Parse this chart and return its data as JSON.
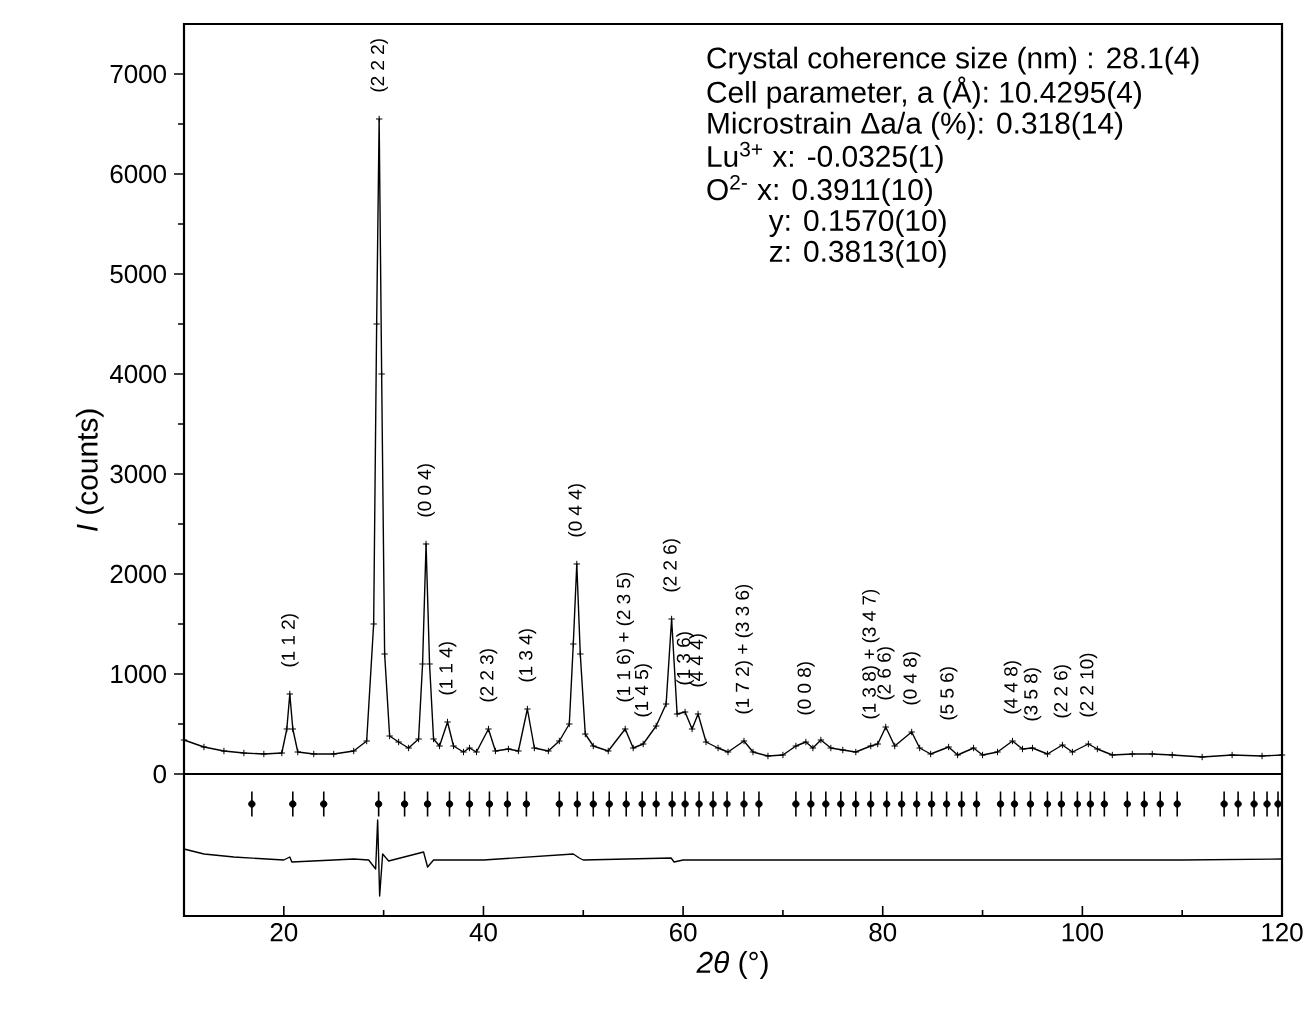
{
  "chart_data": {
    "type": "line",
    "xlabel": "*2θ* (°)",
    "ylabel": "*I* (counts)",
    "xlim": [
      10,
      120
    ],
    "xticks": [
      20,
      40,
      60,
      80,
      100,
      120
    ],
    "ylim": [
      -1420,
      7500
    ],
    "yticks": [
      0,
      1000,
      2000,
      3000,
      4000,
      5000,
      6000,
      7000
    ],
    "grid": false,
    "ref_lines": [
      {
        "axis": "y",
        "value": 0,
        "color": "#000000"
      }
    ],
    "series": [
      {
        "marker": "cross",
        "color": "#000000",
        "x": [
          10,
          12,
          14,
          16,
          18,
          19.8,
          20.3,
          20.6,
          20.9,
          21.4,
          23,
          25,
          27,
          28.3,
          29.0,
          29.3,
          29.55,
          29.8,
          30.1,
          30.6,
          31.5,
          32.5,
          33.5,
          33.9,
          34.25,
          34.6,
          35.0,
          35.6,
          36.4,
          37.0,
          38.0,
          38.6,
          39.3,
          40.5,
          41.2,
          42.5,
          43.5,
          44.4,
          45.1,
          46.5,
          47.6,
          48.6,
          49.0,
          49.35,
          49.7,
          50.2,
          51.0,
          52.5,
          54.2,
          55.0,
          56.0,
          57.3,
          58.3,
          58.85,
          59.4,
          60.2,
          60.9,
          61.5,
          62.3,
          63.5,
          64.5,
          66.1,
          67.0,
          68.5,
          70.0,
          71.3,
          72.3,
          73.0,
          73.8,
          74.8,
          76,
          77.3,
          78.8,
          79.5,
          80.3,
          81.2,
          82.9,
          83.7,
          84.8,
          86.6,
          87.5,
          89.1,
          90,
          91.5,
          93.0,
          94.0,
          95.0,
          96.5,
          98.0,
          99.0,
          100.6,
          101.5,
          103,
          105,
          107,
          109,
          112,
          115,
          118,
          120
        ],
        "values": [
          340,
          270,
          230,
          210,
          200,
          210,
          450,
          800,
          450,
          220,
          200,
          200,
          230,
          330,
          1500,
          4500,
          6550,
          4000,
          1200,
          380,
          320,
          260,
          350,
          1100,
          2300,
          1100,
          350,
          280,
          520,
          280,
          220,
          260,
          220,
          450,
          230,
          250,
          230,
          650,
          260,
          230,
          330,
          500,
          1300,
          2100,
          1200,
          400,
          280,
          230,
          450,
          260,
          300,
          480,
          700,
          1550,
          600,
          620,
          450,
          600,
          320,
          260,
          220,
          330,
          220,
          180,
          190,
          280,
          320,
          260,
          340,
          260,
          240,
          220,
          280,
          300,
          470,
          280,
          420,
          260,
          200,
          270,
          190,
          260,
          190,
          220,
          330,
          250,
          260,
          200,
          290,
          220,
          300,
          250,
          190,
          200,
          200,
          190,
          170,
          190,
          180,
          190
        ]
      },
      {
        "type": "scatter",
        "marker": "none",
        "color": "#000000",
        "x": [
          16.8,
          20.9,
          24.0,
          29.5,
          32.1,
          34.4,
          36.6,
          38.6,
          40.6,
          42.4,
          44.3,
          47.6,
          49.4,
          51.0,
          52.6,
          54.3,
          55.9,
          57.3,
          58.9,
          60.2,
          61.6,
          63.0,
          64.4,
          66.1,
          67.6,
          71.3,
          72.8,
          74.3,
          75.8,
          77.3,
          78.8,
          80.4,
          81.9,
          83.4,
          84.9,
          86.4,
          87.9,
          89.4,
          91.8,
          93.2,
          94.8,
          96.5,
          97.9,
          99.5,
          100.8,
          102.2,
          104.5,
          106.2,
          107.8,
          109.5,
          114.2,
          115.6,
          117.2,
          118.5,
          119.6
        ],
        "values": [
          -300,
          -300,
          -300,
          -300,
          -300,
          -300,
          -300,
          -300,
          -300,
          -300,
          -300,
          -300,
          -300,
          -300,
          -300,
          -300,
          -300,
          -300,
          -300,
          -300,
          -300,
          -300,
          -300,
          -300,
          -300,
          -300,
          -300,
          -300,
          -300,
          -300,
          -300,
          -300,
          -300,
          -300,
          -300,
          -300,
          -300,
          -300,
          -300,
          -300,
          -300,
          -300,
          -300,
          -300,
          -300,
          -300,
          -300,
          -300,
          -300,
          -300,
          -300,
          -300,
          -300,
          -300,
          -300
        ],
        "errors": [
          125,
          125,
          125,
          125,
          125,
          125,
          125,
          125,
          125,
          125,
          125,
          125,
          125,
          125,
          125,
          125,
          125,
          125,
          125,
          125,
          125,
          125,
          125,
          125,
          125,
          125,
          125,
          125,
          125,
          125,
          125,
          125,
          125,
          125,
          125,
          125,
          125,
          125,
          125,
          125,
          125,
          125,
          125,
          125,
          125,
          125,
          125,
          125,
          125,
          125,
          125,
          125,
          125,
          125,
          125
        ]
      },
      {
        "marker": "none",
        "color": "#000000",
        "x": [
          10,
          12,
          15,
          20,
          20.6,
          20.8,
          25,
          27,
          28.5,
          29.2,
          29.4,
          29.6,
          29.9,
          30.5,
          34.0,
          34.4,
          35,
          40,
          49,
          49.6,
          50,
          58.8,
          59.1,
          60,
          70,
          80,
          90,
          100,
          110,
          120
        ],
        "values": [
          -750,
          -800,
          -830,
          -860,
          -830,
          -880,
          -860,
          -850,
          -860,
          -950,
          -460,
          -1220,
          -800,
          -870,
          -780,
          -930,
          -860,
          -860,
          -800,
          -840,
          -860,
          -840,
          -880,
          -860,
          -860,
          -860,
          -860,
          -860,
          -860,
          -850
        ]
      }
    ],
    "annotations": [
      "Crystal coherence size (nm) : 28.1(4)",
      "Cell parameter, a (Å): 10.4295(4)",
      "Microstrain Δa/a (%): 0.318(14)",
      "Lu$^{3+}$ x: -0.0325(1)",
      "O$^{2-}$   x: 0.3911(10)",
      "y: 0.1570(10)",
      "z: 0.3813(10)",
      {
        "text": "(1 1 2)",
        "x": 20.6,
        "y": 800
      },
      {
        "text": "(2 2 2)",
        "x": 29.55,
        "y": 6550
      },
      {
        "text": "(0 0 4)",
        "x": 34.25,
        "y": 2300
      },
      {
        "text": "(1 1 4)",
        "x": 36.4,
        "y": 520
      },
      {
        "text": "(2 2 3)",
        "x": 40.5,
        "y": 450
      },
      {
        "text": "(1 3 4)",
        "x": 44.4,
        "y": 650
      },
      {
        "text": "(0 4 4)",
        "x": 49.35,
        "y": 2100
      },
      {
        "text": "(1 1 6) + (2 3 5)",
        "x": 54.2,
        "y": 450
      },
      {
        "text": "(1 4 5)",
        "x": 56.0,
        "y": 300
      },
      {
        "text": "(2 2 6)",
        "x": 58.85,
        "y": 1550
      },
      {
        "text": "(1 3 6)",
        "x": 60.2,
        "y": 620
      },
      {
        "text": "(4 4 4)",
        "x": 61.5,
        "y": 600
      },
      {
        "text": "(1 7 2) + (3 3 6)",
        "x": 66.1,
        "y": 330
      },
      {
        "text": "(0 0 8)",
        "x": 72.3,
        "y": 320
      },
      {
        "text": "(1 3 8) + (3 4 7)",
        "x": 78.8,
        "y": 280
      },
      {
        "text": "(2 6 6)",
        "x": 80.3,
        "y": 470
      },
      {
        "text": "(0 4 8)",
        "x": 82.9,
        "y": 420
      },
      {
        "text": "(5 5 6)",
        "x": 86.6,
        "y": 270
      },
      {
        "text": "(4 4 8)",
        "x": 93.0,
        "y": 330
      },
      {
        "text": "(3 5 8)",
        "x": 95.0,
        "y": 260
      },
      {
        "text": "(2 2 6)",
        "x": 98.0,
        "y": 290
      },
      {
        "text": "(2 2 10)",
        "x": 100.6,
        "y": 300
      }
    ]
  }
}
